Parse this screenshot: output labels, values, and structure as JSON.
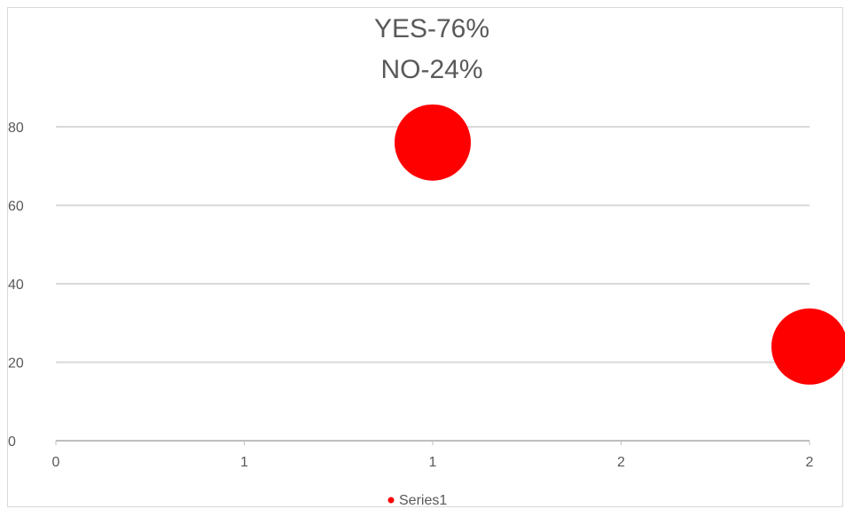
{
  "chart_data": {
    "type": "scatter",
    "title_lines": [
      "YES-76%",
      "NO-24%"
    ],
    "x_tick_labels": [
      "0",
      "1",
      "1",
      "2",
      "2"
    ],
    "y_tick_labels": [
      "0",
      "20",
      "40",
      "60",
      "80"
    ],
    "xlim": [
      0,
      2
    ],
    "ylim": [
      0,
      80
    ],
    "grid": true,
    "legend_position": "bottom",
    "series": [
      {
        "name": "Series1",
        "color": "#ff0000",
        "points": [
          {
            "x": 1,
            "y": 76
          },
          {
            "x": 2,
            "y": 24
          }
        ]
      }
    ]
  }
}
